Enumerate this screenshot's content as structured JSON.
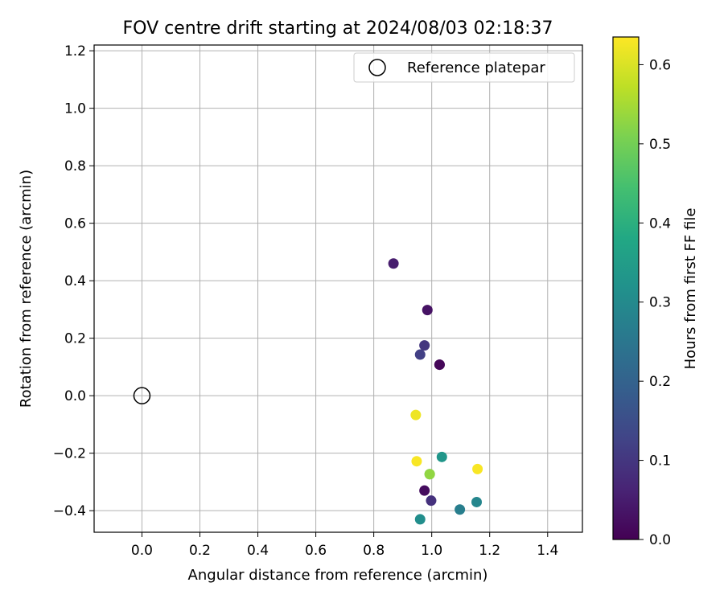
{
  "chart_data": {
    "type": "scatter",
    "title": "FOV centre drift starting at 2024/08/03 02:18:37",
    "xlabel": "Angular distance from reference (arcmin)",
    "ylabel": "Rotation from reference (arcmin)",
    "xlim": [
      -0.165,
      1.52
    ],
    "ylim": [
      -0.475,
      1.22
    ],
    "xticks": [
      0.0,
      0.2,
      0.4,
      0.6,
      0.8,
      1.0,
      1.2,
      1.4
    ],
    "xtick_labels": [
      "0.0",
      "0.2",
      "0.4",
      "0.6",
      "0.8",
      "1.0",
      "1.2",
      "1.4"
    ],
    "yticks": [
      -0.4,
      -0.2,
      0.0,
      0.2,
      0.4,
      0.6,
      0.8,
      1.0,
      1.2
    ],
    "ytick_labels": [
      "−0.4",
      "−0.2",
      "0.0",
      "0.2",
      "0.4",
      "0.6",
      "0.8",
      "1.0",
      "1.2"
    ],
    "grid": true,
    "legend": {
      "position": "top-right",
      "entries": [
        "Reference platepar"
      ]
    },
    "reference_point": {
      "x": 0.0,
      "y": 0.0,
      "label": "Reference platepar"
    },
    "colorbar": {
      "label": "Hours from first FF file",
      "range": [
        0.0,
        0.635
      ],
      "colormap": "viridis",
      "ticks": [
        0.0,
        0.1,
        0.2,
        0.3,
        0.4,
        0.5,
        0.6
      ],
      "tick_labels": [
        "0.0",
        "0.1",
        "0.2",
        "0.3",
        "0.4",
        "0.5",
        "0.6"
      ]
    },
    "points": [
      {
        "x": 1.027,
        "y": 0.108,
        "c": 0.0
      },
      {
        "x": 1.027,
        "y": 0.108,
        "c": 0.01
      },
      {
        "x": 0.985,
        "y": 0.298,
        "c": 0.03
      },
      {
        "x": 0.975,
        "y": -0.33,
        "c": 0.02
      },
      {
        "x": 0.868,
        "y": 0.46,
        "c": 0.05
      },
      {
        "x": 0.998,
        "y": -0.365,
        "c": 0.09
      },
      {
        "x": 0.975,
        "y": 0.175,
        "c": 0.1
      },
      {
        "x": 0.96,
        "y": 0.143,
        "c": 0.12
      },
      {
        "x": 1.097,
        "y": -0.396,
        "c": 0.27
      },
      {
        "x": 0.96,
        "y": -0.43,
        "c": 0.31
      },
      {
        "x": 1.155,
        "y": -0.37,
        "c": 0.29
      },
      {
        "x": 1.035,
        "y": -0.213,
        "c": 0.33
      },
      {
        "x": 0.993,
        "y": -0.273,
        "c": 0.47
      },
      {
        "x": 0.993,
        "y": -0.273,
        "c": 0.53
      },
      {
        "x": 0.945,
        "y": -0.067,
        "c": 0.62
      },
      {
        "x": 0.948,
        "y": -0.228,
        "c": 0.63
      },
      {
        "x": 1.158,
        "y": -0.255,
        "c": 0.63
      }
    ]
  }
}
